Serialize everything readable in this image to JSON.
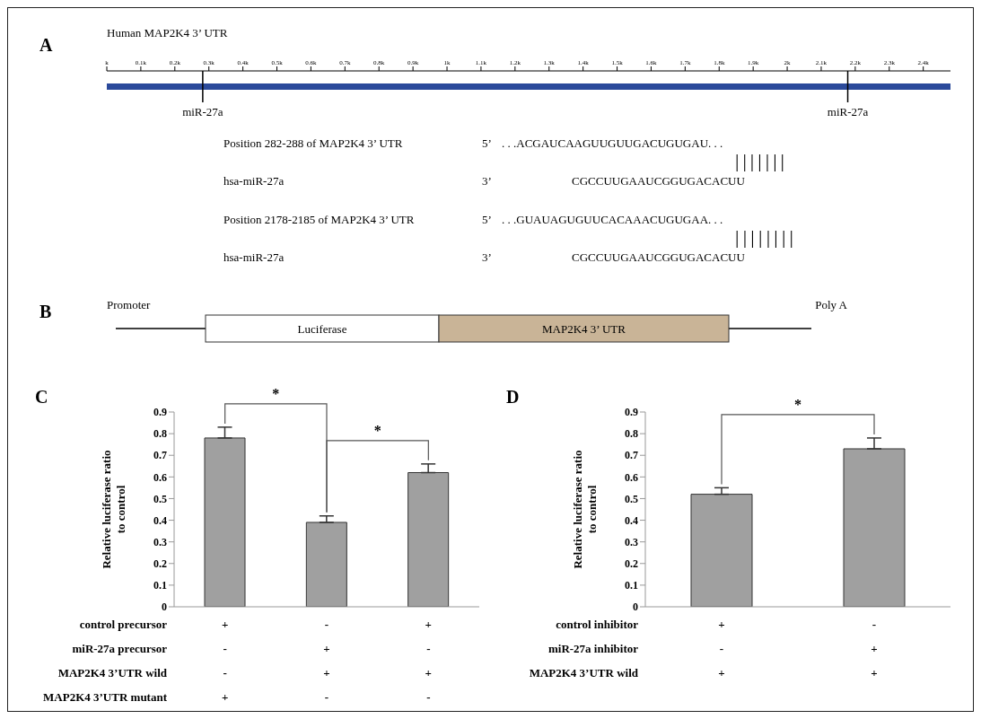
{
  "chart_data": [
    {
      "type": "bar",
      "orientation": "horizontal",
      "title": "A",
      "categories": [
        null
      ],
      "values": [
        2480
      ],
      "color": "#2b4a9b",
      "xlim": [
        0,
        2480
      ],
      "xticks": [
        {
          "value": 0,
          "label": "k"
        },
        {
          "value": 100,
          "label": "0.1k"
        },
        {
          "value": 200,
          "label": "0.2k"
        },
        {
          "value": 300,
          "label": "0.3k"
        },
        {
          "value": 400,
          "label": "0.4k"
        },
        {
          "value": 500,
          "label": "0.5k"
        },
        {
          "value": 600,
          "label": "0.6k"
        },
        {
          "value": 700,
          "label": "0.7k"
        },
        {
          "value": 800,
          "label": "0.8k"
        },
        {
          "value": 900,
          "label": "0.9k"
        },
        {
          "value": 1000,
          "label": "1k"
        },
        {
          "value": 1100,
          "label": "1.1k"
        },
        {
          "value": 1200,
          "label": "1.2k"
        },
        {
          "value": 1300,
          "label": "1.3k"
        },
        {
          "value": 1400,
          "label": "1.4k"
        },
        {
          "value": 1500,
          "label": "1.5k"
        },
        {
          "value": 1600,
          "label": "1.6k"
        },
        {
          "value": 1700,
          "label": "1.7k"
        },
        {
          "value": 1800,
          "label": "1.8k"
        },
        {
          "value": 1900,
          "label": "1.9k"
        },
        {
          "value": 2000,
          "label": "2k"
        },
        {
          "value": 2100,
          "label": "2.1k"
        },
        {
          "value": 2200,
          "label": "2.2k"
        },
        {
          "value": 2300,
          "label": "2.3k"
        },
        {
          "value": 2400,
          "label": "2.4k"
        }
      ],
      "ref_lines": [
        {
          "axis": "x",
          "value": 282,
          "label": "miR-27a"
        },
        {
          "axis": "x",
          "value": 2178,
          "label": "miR-27a"
        }
      ],
      "annotations": [
        "Human MAP2K4  3’ UTR",
        "Position 282-288 of MAP2K4 3’ UTR",
        "5’",
        ". . .ACGAUCAAGUUGUUGACUGUGAU. . .",
        "|||||||",
        "hsa-miR-27a",
        "3’",
        "CGCCUUGAAUCGGUGACACUU",
        "Position 2178-2185 of MAP2K4 3’ UTR",
        "5’",
        ". . .GUAUAGUGUUCACAAACUGUGAA. . .",
        "||||||||",
        "hsa-miR-27a",
        "3’",
        "CGCCUUGAAUCGGUGACACUU"
      ]
    },
    {
      "type": "other",
      "title": "B",
      "colors": [
        "#ffffff",
        "#c9b497"
      ],
      "annotations": [
        "Promoter",
        "Poly A",
        "Luciferase",
        "MAP2K4 3’ UTR"
      ]
    },
    {
      "type": "bar",
      "title": "C",
      "ylabel": "Relative luciferase ratio to control",
      "categories": [
        null,
        null,
        null
      ],
      "values": [
        0.78,
        0.39,
        0.62
      ],
      "errors": [
        [
          0.78,
          0.83
        ],
        [
          0.39,
          0.42
        ],
        [
          0.62,
          0.66
        ]
      ],
      "color": "#a0a0a0",
      "ylim": [
        0,
        0.9
      ],
      "yticks": [
        0,
        0.1,
        0.2,
        0.3,
        0.4,
        0.5,
        0.6,
        0.7,
        0.8,
        0.9
      ],
      "annotations": [
        "*",
        "*",
        "control precursor",
        "+",
        "-",
        "+",
        "miR-27a precursor",
        "-",
        "+",
        "-",
        "MAP2K4 3’UTR wild",
        "-",
        "+",
        "+",
        "MAP2K4 3’UTR mutant",
        "+",
        "-",
        "-"
      ]
    },
    {
      "type": "bar",
      "title": "D",
      "ylabel": "Relative luciferase ratio to control",
      "categories": [
        null,
        null
      ],
      "values": [
        0.52,
        0.73
      ],
      "errors": [
        [
          0.52,
          0.55
        ],
        [
          0.73,
          0.78
        ]
      ],
      "color": "#a0a0a0",
      "ylim": [
        0,
        0.9
      ],
      "yticks": [
        0,
        0.1,
        0.2,
        0.3,
        0.4,
        0.5,
        0.6,
        0.7,
        0.8,
        0.9
      ],
      "annotations": [
        "*",
        "control  inhibitor",
        "+",
        "-",
        "miR-27a inhibitor",
        "-",
        "+",
        "MAP2K4 3’UTR wild",
        "+",
        "+"
      ]
    }
  ]
}
